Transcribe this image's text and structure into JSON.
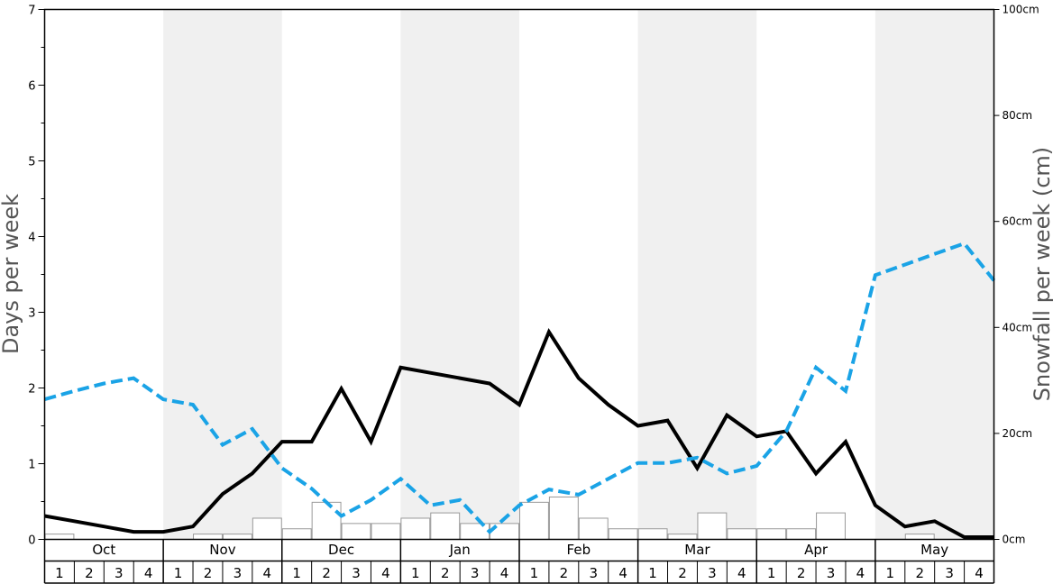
{
  "chart_data": {
    "type": "line",
    "title": "",
    "ylabel_left": "Days per week",
    "ylabel_right": "Snowfall per week (cm)",
    "ylim_left": [
      0,
      7
    ],
    "ylim_right": [
      0,
      100
    ],
    "left_major_ticks": [
      "0",
      "1",
      "2",
      "3",
      "4",
      "5",
      "6",
      "7"
    ],
    "right_ticks": [
      {
        "value": 0,
        "label": "0cm"
      },
      {
        "value": 20,
        "label": "20cm"
      },
      {
        "value": 40,
        "label": "40cm"
      },
      {
        "value": 60,
        "label": "60cm"
      },
      {
        "value": 80,
        "label": "80cm"
      },
      {
        "value": 100,
        "label": "100cm"
      }
    ],
    "months": [
      "Oct",
      "Nov",
      "Dec",
      "Jan",
      "Feb",
      "Mar",
      "Apr",
      "May"
    ],
    "week_labels": [
      "1",
      "2",
      "3",
      "4"
    ],
    "colors": {
      "black_series": "#000000",
      "blue_series": "#1aa3e6",
      "band": "#f0f0f0",
      "bar_stroke": "#999999"
    },
    "series": [
      {
        "axis": "left",
        "style": "solid-black",
        "values": [
          0.31,
          0.24,
          0.17,
          0.1,
          0.1,
          0.17,
          0.6,
          0.87,
          1.29,
          1.29,
          1.99,
          1.29,
          2.27,
          2.2,
          2.13,
          2.06,
          1.78,
          2.74,
          2.13,
          1.78,
          1.5,
          1.57,
          0.94,
          1.64,
          1.36,
          1.43,
          0.87,
          1.29,
          0.45,
          0.17,
          0.24,
          0.03,
          0.03
        ]
      },
      {
        "axis": "left",
        "style": "dashed-blue",
        "values": [
          1.85,
          1.96,
          2.06,
          2.13,
          1.85,
          1.78,
          1.25,
          1.46,
          0.94,
          0.67,
          0.31,
          0.52,
          0.8,
          0.45,
          0.52,
          0.1,
          0.45,
          0.66,
          0.59,
          0.8,
          1.01,
          1.01,
          1.08,
          0.87,
          0.97,
          1.43,
          2.27,
          1.96,
          3.49,
          3.63,
          3.77,
          3.91,
          3.42
        ]
      },
      {
        "axis": "right",
        "style": "bars",
        "values": [
          1,
          0,
          0,
          0,
          0,
          1,
          1,
          4,
          2,
          7,
          3,
          3,
          4,
          5,
          3,
          3,
          7,
          8,
          4,
          2,
          2,
          1,
          5,
          2,
          2,
          2,
          5,
          0,
          0,
          1,
          0,
          0
        ]
      }
    ]
  }
}
